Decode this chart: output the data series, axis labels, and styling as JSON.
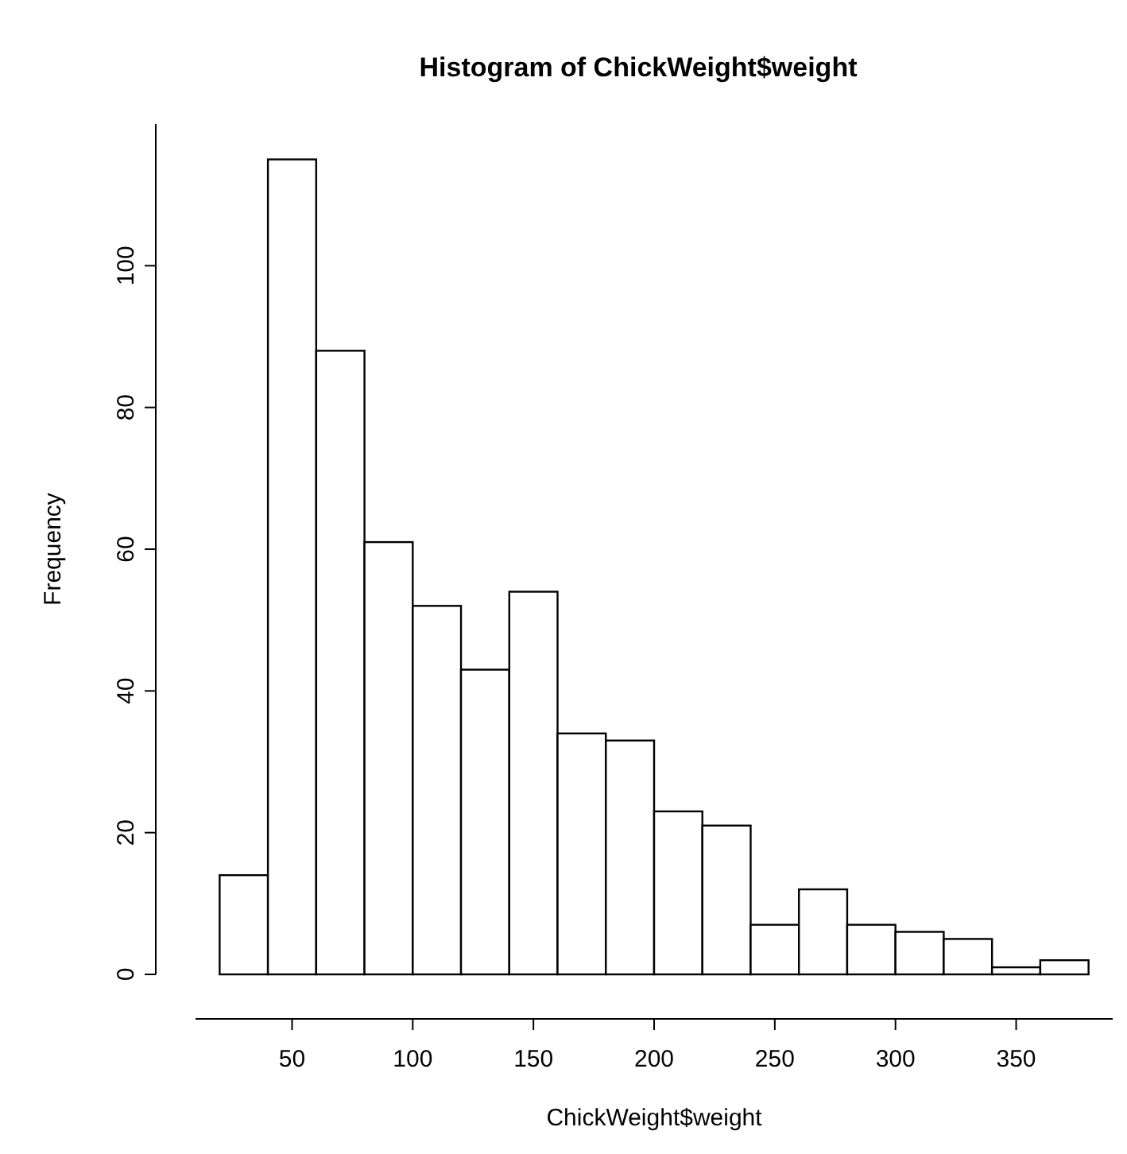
{
  "chart_data": {
    "type": "histogram",
    "title": "Histogram of ChickWeight$weight",
    "xlabel": "ChickWeight$weight",
    "ylabel": "Frequency",
    "bins": [
      20,
      40,
      60,
      80,
      100,
      120,
      140,
      160,
      180,
      200,
      220,
      240,
      260,
      280,
      300,
      320,
      340,
      360,
      380
    ],
    "values": [
      14,
      115,
      88,
      61,
      52,
      43,
      54,
      34,
      33,
      23,
      21,
      7,
      12,
      7,
      6,
      5,
      1,
      2
    ],
    "color": "#ffffff",
    "xlim": [
      10,
      390
    ],
    "xticks": [
      50,
      100,
      150,
      200,
      250,
      300,
      350
    ],
    "ylim": [
      0,
      120
    ],
    "yticks": [
      0,
      20,
      40,
      60,
      80,
      100
    ],
    "grid": false
  }
}
